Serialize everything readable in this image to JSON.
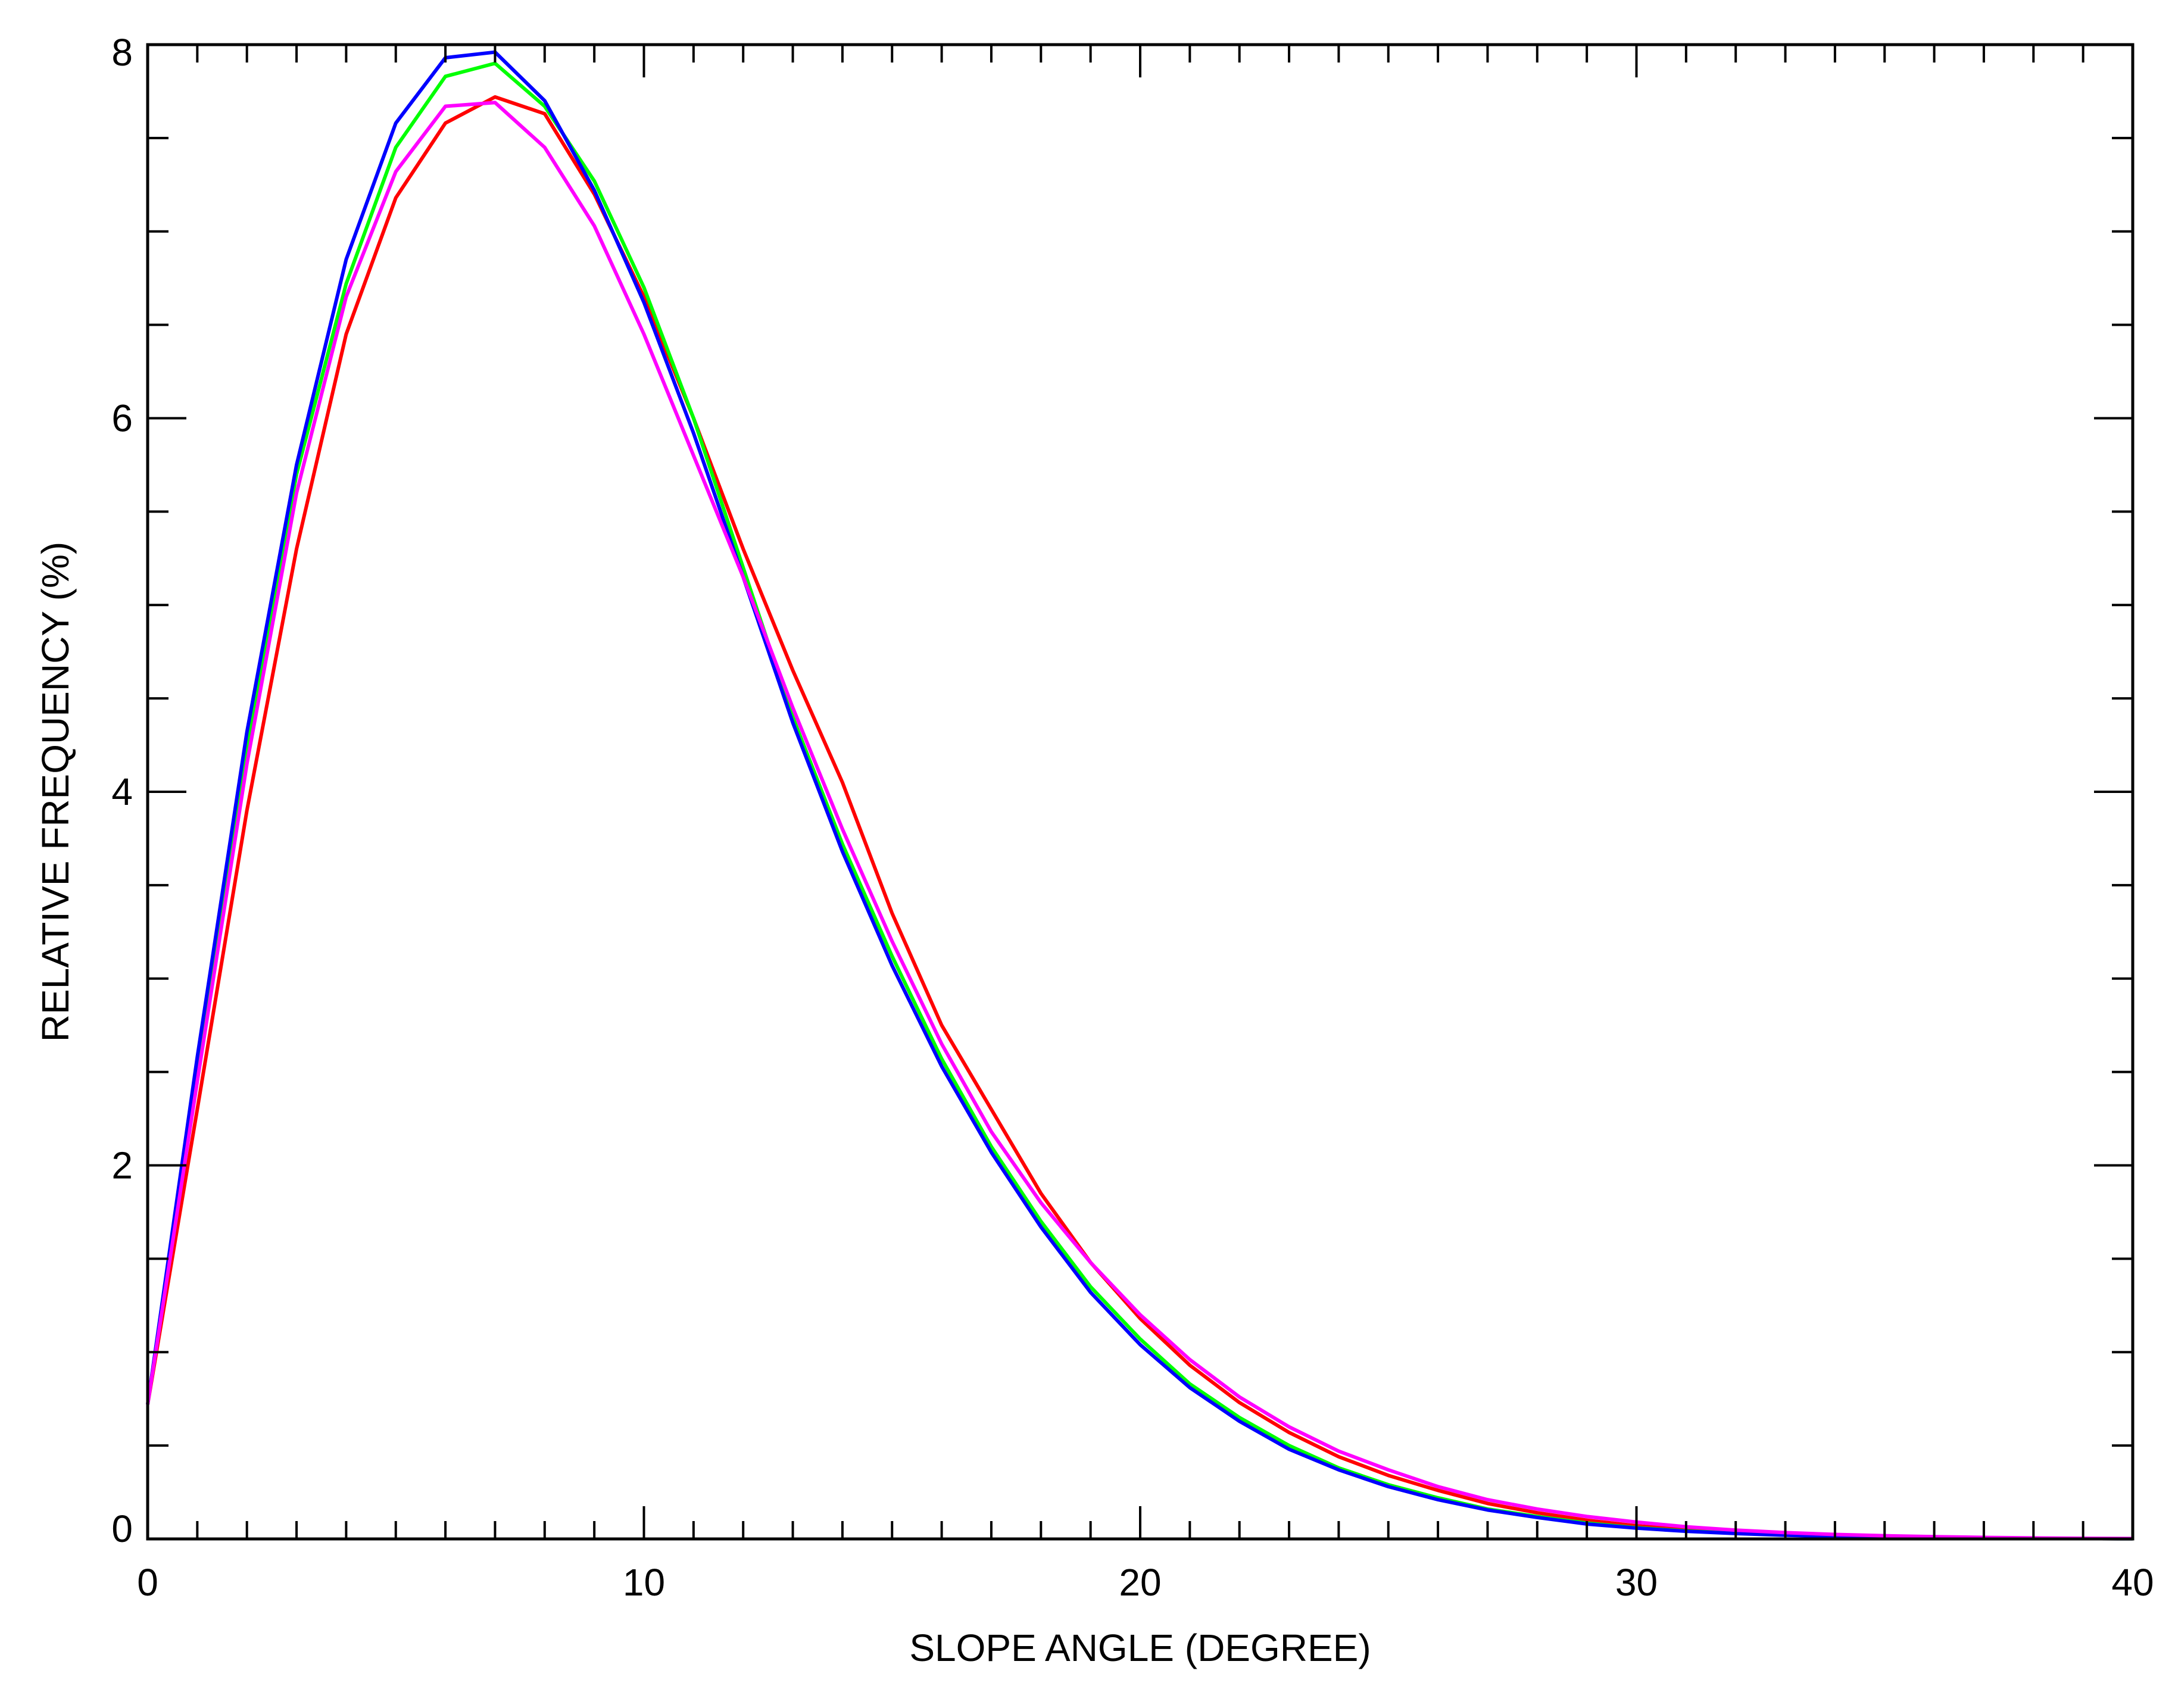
{
  "chart_data": {
    "type": "line",
    "title": "",
    "xlabel": "SLOPE ANGLE (DEGREE)",
    "ylabel": "RELATIVE FREQUENCY (%)",
    "xlim": [
      0,
      40
    ],
    "ylim": [
      0,
      8
    ],
    "xticks": [
      "0",
      "10",
      "20",
      "30",
      "40"
    ],
    "yticks": [
      "0",
      "2",
      "4",
      "6",
      "8"
    ],
    "grid": false,
    "legend": "none",
    "x": [
      0,
      1,
      2,
      3,
      4,
      5,
      6,
      7,
      8,
      9,
      10,
      11,
      12,
      13,
      14,
      15,
      16,
      17,
      18,
      19,
      20,
      21,
      22,
      23,
      24,
      25,
      26,
      27,
      28,
      29,
      30,
      31,
      32,
      33,
      34,
      35,
      36,
      37,
      38,
      39,
      40
    ],
    "series": [
      {
        "color": "#ff0000",
        "values": [
          0.72,
          2.3,
          3.9,
          5.3,
          6.45,
          7.18,
          7.58,
          7.72,
          7.63,
          7.2,
          6.65,
          6.0,
          5.3,
          4.65,
          4.05,
          3.35,
          2.75,
          2.3,
          1.85,
          1.48,
          1.18,
          0.93,
          0.73,
          0.57,
          0.44,
          0.34,
          0.26,
          0.19,
          0.14,
          0.1,
          0.07,
          0.05,
          0.035,
          0.025,
          0.018,
          0.012,
          0.008,
          0.005,
          0.003,
          0.002,
          0.001
        ]
      },
      {
        "color": "#00ff00",
        "values": [
          0.72,
          2.55,
          4.25,
          5.7,
          6.72,
          7.45,
          7.83,
          7.9,
          7.67,
          7.27,
          6.7,
          6.0,
          5.2,
          4.4,
          3.72,
          3.12,
          2.57,
          2.1,
          1.7,
          1.35,
          1.07,
          0.83,
          0.65,
          0.5,
          0.38,
          0.29,
          0.22,
          0.16,
          0.12,
          0.085,
          0.06,
          0.043,
          0.03,
          0.021,
          0.014,
          0.009,
          0.006,
          0.004,
          0.003,
          0.002,
          0.001
        ]
      },
      {
        "color": "#0000ff",
        "values": [
          0.72,
          2.58,
          4.32,
          5.75,
          6.85,
          7.58,
          7.93,
          7.96,
          7.7,
          7.22,
          6.62,
          5.92,
          5.15,
          4.37,
          3.68,
          3.07,
          2.53,
          2.07,
          1.67,
          1.32,
          1.04,
          0.81,
          0.63,
          0.48,
          0.37,
          0.28,
          0.21,
          0.155,
          0.115,
          0.08,
          0.058,
          0.041,
          0.029,
          0.02,
          0.014,
          0.009,
          0.006,
          0.004,
          0.003,
          0.002,
          0.001
        ]
      },
      {
        "color": "#ff00ff",
        "values": [
          0.72,
          2.45,
          4.15,
          5.6,
          6.65,
          7.32,
          7.67,
          7.69,
          7.45,
          7.03,
          6.45,
          5.8,
          5.15,
          4.45,
          3.8,
          3.2,
          2.65,
          2.18,
          1.8,
          1.48,
          1.2,
          0.96,
          0.76,
          0.6,
          0.47,
          0.37,
          0.28,
          0.21,
          0.16,
          0.12,
          0.09,
          0.065,
          0.047,
          0.034,
          0.024,
          0.017,
          0.012,
          0.008,
          0.005,
          0.003,
          0.002
        ]
      }
    ]
  }
}
